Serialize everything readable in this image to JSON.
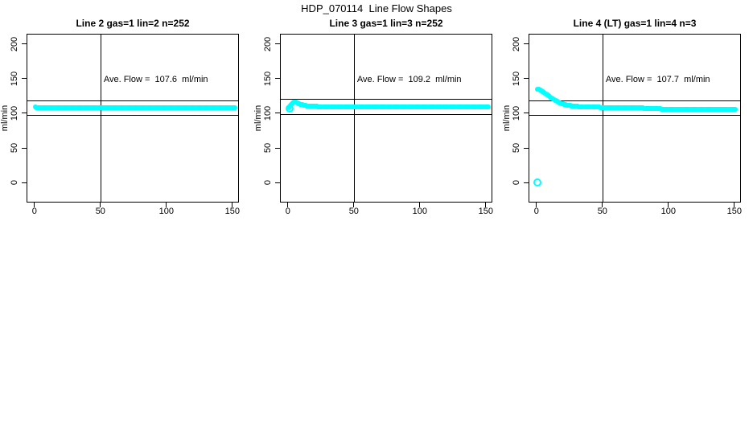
{
  "page_title": "HDP_070114  Line Flow Shapes",
  "colors": {
    "series": "#00ffff",
    "axis": "#000000",
    "background": "#ffffff",
    "text": "#000000"
  },
  "chart_data": [
    {
      "type": "scatter",
      "title": "Line 2 gas=1 lin=2 n=252",
      "ylabel": "ml/min",
      "annotation": "Ave. Flow =  107.6  ml/min",
      "ave_flow_ml_min": 107.6,
      "n": 252,
      "x_ticks": [
        0,
        50,
        100,
        150
      ],
      "y_ticks": [
        0,
        50,
        100,
        150,
        200
      ],
      "xlim": [
        -6,
        155
      ],
      "ylim": [
        -29,
        215
      ],
      "vline_x": 50,
      "ref_lines": [
        118.4,
        96.8
      ],
      "points": [
        [
          0.5,
          109
        ],
        [
          1.5,
          108.4
        ],
        [
          3,
          108.1
        ],
        [
          6,
          107.9
        ],
        [
          10,
          107.8
        ],
        [
          20,
          107.7
        ],
        [
          40,
          107.6
        ],
        [
          70,
          107.6
        ],
        [
          100,
          107.6
        ],
        [
          130,
          107.7
        ],
        [
          152,
          107.7
        ]
      ],
      "outliers": []
    },
    {
      "type": "scatter",
      "title": "Line 3 gas=1 lin=3 n=252",
      "ylabel": "ml/min",
      "annotation": "Ave. Flow =  109.2  ml/min",
      "ave_flow_ml_min": 109.2,
      "n": 252,
      "x_ticks": [
        0,
        50,
        100,
        150
      ],
      "y_ticks": [
        0,
        50,
        100,
        150,
        200
      ],
      "xlim": [
        -6,
        155
      ],
      "ylim": [
        -29,
        215
      ],
      "vline_x": 50,
      "ref_lines": [
        120.1,
        98.3
      ],
      "points": [
        [
          0.5,
          108
        ],
        [
          1.5,
          110.5
        ],
        [
          3,
          113.5
        ],
        [
          4,
          115.5
        ],
        [
          5,
          116.2
        ],
        [
          6,
          115.8
        ],
        [
          7,
          115
        ],
        [
          8,
          114
        ],
        [
          10,
          112.6
        ],
        [
          12,
          111.6
        ],
        [
          14,
          111
        ],
        [
          17,
          110.4
        ],
        [
          20,
          110
        ],
        [
          25,
          109.6
        ],
        [
          30,
          109.4
        ],
        [
          40,
          109.2
        ],
        [
          60,
          109.1
        ],
        [
          80,
          109.1
        ],
        [
          100,
          109.1
        ],
        [
          120,
          109.1
        ],
        [
          152,
          108.9
        ]
      ],
      "outliers": [
        [
          1.2,
          107.5
        ]
      ]
    },
    {
      "type": "scatter",
      "title": "Line 4 (LT) gas=1 lin=4 n=3",
      "ylabel": "ml/min",
      "annotation": "Ave. Flow =  107.7  ml/min",
      "ave_flow_ml_min": 107.7,
      "n": 3,
      "x_ticks": [
        0,
        50,
        100,
        150
      ],
      "y_ticks": [
        0,
        50,
        100,
        150,
        200
      ],
      "xlim": [
        -6,
        155
      ],
      "ylim": [
        -29,
        215
      ],
      "vline_x": 50,
      "ref_lines": [
        118.5,
        96.9
      ],
      "points": [
        [
          1,
          135
        ],
        [
          2,
          134.2
        ],
        [
          3,
          133.2
        ],
        [
          5,
          131
        ],
        [
          7,
          128.3
        ],
        [
          9,
          125.5
        ],
        [
          11,
          122.7
        ],
        [
          13,
          120
        ],
        [
          15,
          117.8
        ],
        [
          18,
          114.9
        ],
        [
          21,
          112.9
        ],
        [
          24,
          111.5
        ],
        [
          28,
          110.3
        ],
        [
          32,
          109.7
        ],
        [
          36,
          109.3
        ],
        [
          40,
          109
        ],
        [
          50,
          108.6
        ],
        [
          60,
          108.3
        ],
        [
          70,
          108
        ],
        [
          80,
          107.6
        ],
        [
          90,
          106.8
        ],
        [
          95,
          106.3
        ],
        [
          100,
          105.9
        ],
        [
          105,
          106.1
        ],
        [
          110,
          106.3
        ],
        [
          120,
          106.3
        ],
        [
          130,
          106.2
        ],
        [
          140,
          106.1
        ],
        [
          151,
          106
        ]
      ],
      "outliers": [
        [
          0.8,
          0
        ]
      ]
    }
  ]
}
